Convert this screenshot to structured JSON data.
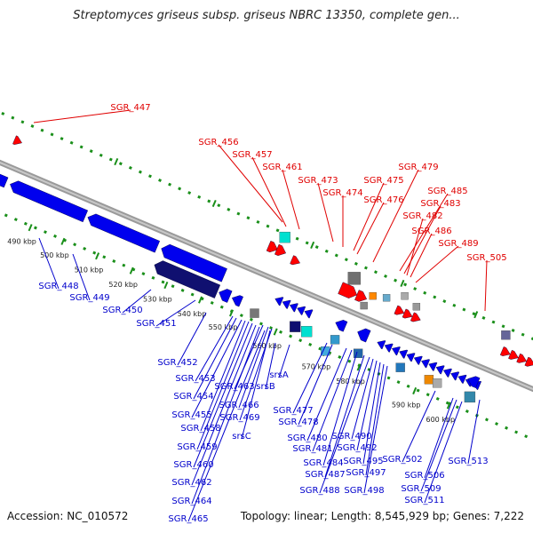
{
  "title": "Streptomyces griseus subsp. griseus NBRC 13350, complete gen...",
  "footer": {
    "accession": "Accession: NC_010572",
    "topology": "Topology: linear; Length: 8,545,929 bp; Genes: 7,222"
  },
  "colors": {
    "forward_label": "#e00000",
    "reverse_label": "#0000cc",
    "axis_dots": "#1a8f1a",
    "backbone": "#9a9a9a",
    "gene_blue": "#0000ee",
    "gene_navy": "#101070",
    "gene_red": "#ff0000",
    "gene_cyan": "#00e0d0",
    "gene_grey": "#888888"
  },
  "scale_ticks": [
    "490 kbp",
    "500 kbp",
    "510 kbp",
    "520 kbp",
    "530 kbp",
    "540 kbp",
    "550 kbp",
    "560 kbp",
    "570 kbp",
    "580 kbp",
    "590 kbp",
    "600 kbp"
  ],
  "forward_genes": [
    "SGR_447",
    "SGR_456",
    "SGR_457",
    "SGR_461",
    "SGR_473",
    "SGR_474",
    "SGR_475",
    "SGR_476",
    "SGR_479",
    "SGR_485",
    "SGR_483",
    "SGR_482",
    "SGR_486",
    "SGR_489",
    "SGR_505"
  ],
  "reverse_genes": [
    "SGR_448",
    "SGR_449",
    "SGR_450",
    "SGR_451",
    "SGR_452",
    "SGR_453",
    "SGR_454",
    "SGR_455",
    "SGR_458",
    "SGR_459",
    "SGR_460",
    "SGR_462",
    "SGR_464",
    "SGR_465",
    "SGR_463",
    "srsB",
    "SGR_466",
    "SGR_469",
    "srsC",
    "srsA",
    "SGR_477",
    "SGR_478",
    "SGR_480",
    "SGR_481",
    "SGR_484",
    "SGR_487",
    "SGR_488",
    "SGR_490",
    "SGR_492",
    "SGR_495",
    "SGR_497",
    "SGR_498",
    "SGR_502",
    "SGR_506",
    "SGR_509",
    "SGR_511",
    "SGR_513"
  ]
}
